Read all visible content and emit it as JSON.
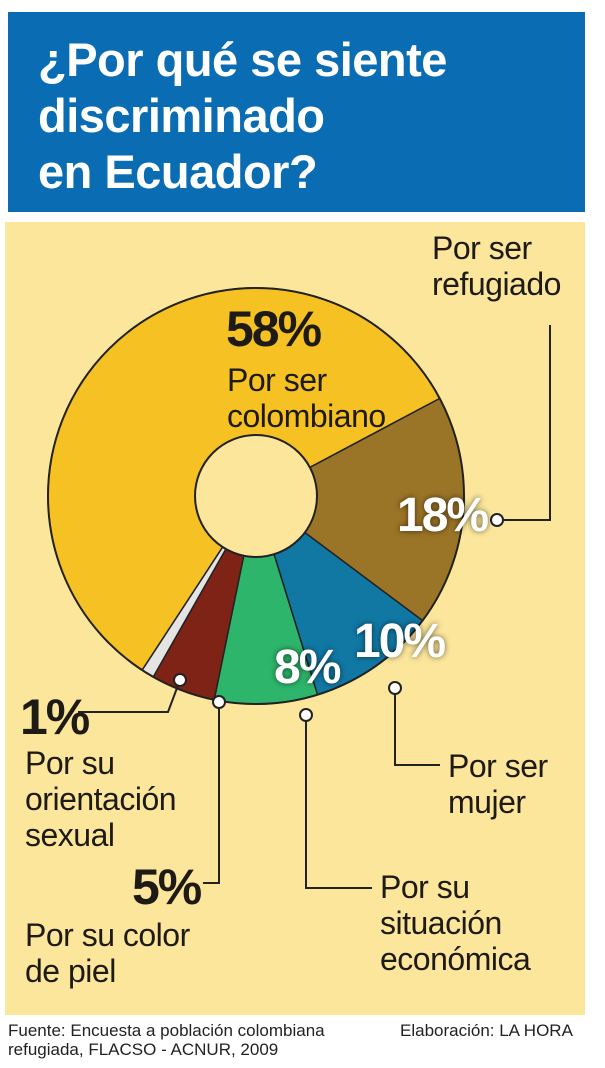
{
  "title": "¿Por qué se siente discriminado en Ecuador?",
  "title_lines": [
    "¿Por qué se siente",
    "discriminado",
    "en Ecuador?"
  ],
  "colors": {
    "header_bg": "#0a6db3",
    "panel_bg": "#fbe69b"
  },
  "chart_data": {
    "type": "pie",
    "donut": true,
    "title": "¿Por qué se siente discriminado en Ecuador?",
    "slices": [
      {
        "label": "Por ser refugiado",
        "value": 18,
        "value_label": "18%",
        "color": "#9a7427"
      },
      {
        "label": "Por ser mujer",
        "value": 10,
        "value_label": "10%",
        "color": "#1178a4"
      },
      {
        "label": "Por su situación económica",
        "value": 8,
        "value_label": "8%",
        "color": "#2db56c"
      },
      {
        "label": "Por su color de piel",
        "value": 5,
        "value_label": "5%",
        "color": "#7f2317"
      },
      {
        "label": "Por su orientación sexual",
        "value": 1,
        "value_label": "1%",
        "color": "#e4e4e4"
      },
      {
        "label": "Por ser colombiano",
        "value": 58,
        "value_label": "58%",
        "color": "#f6c122"
      }
    ]
  },
  "labels": {
    "refugiado": [
      "Por ser",
      "refugiado"
    ],
    "colombiano": [
      "Por ser",
      "colombiano"
    ],
    "mujer": [
      "Por ser",
      "mujer"
    ],
    "economica": [
      "Por su",
      "situación",
      "económica"
    ],
    "color_piel": [
      "Por su color",
      "de piel"
    ],
    "orientacion": [
      "Por su",
      "orientación",
      "sexual"
    ]
  },
  "footer": {
    "source": [
      "Fuente: Encuesta a población colombiana",
      "refugiada, FLACSO - ACNUR, 2009"
    ],
    "credit": "Elaboración: LA HORA"
  }
}
